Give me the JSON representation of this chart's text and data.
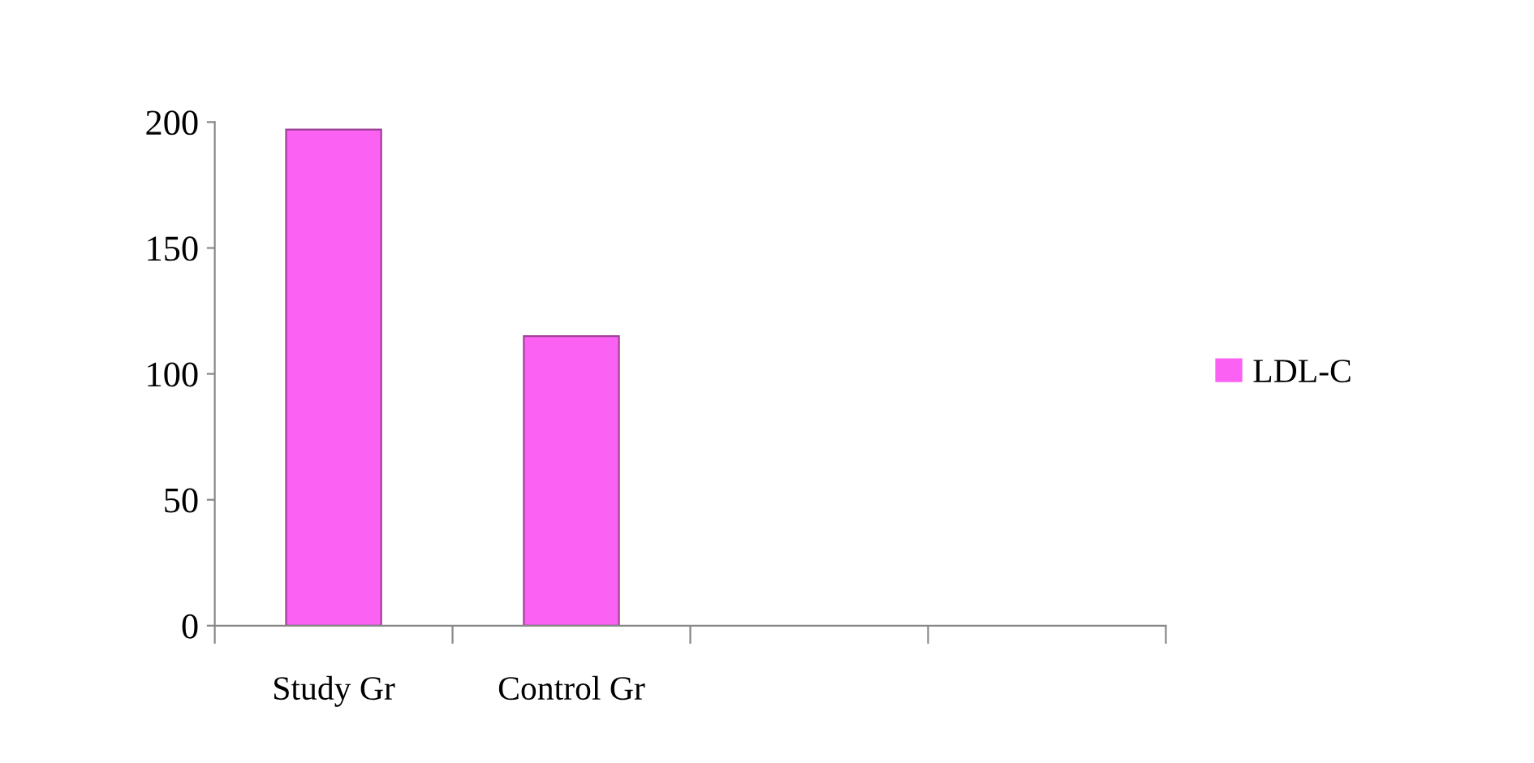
{
  "chart_data": {
    "type": "bar",
    "categories": [
      "Study Gr",
      "Control Gr",
      null,
      null
    ],
    "series": [
      {
        "name": "LDL-C",
        "color": "#fb62f3",
        "values": [
          197,
          115,
          null,
          null
        ]
      }
    ],
    "ylim": [
      0,
      200
    ],
    "yticks": [
      0,
      50,
      100,
      150,
      200
    ],
    "grid": false,
    "legend": "right"
  }
}
